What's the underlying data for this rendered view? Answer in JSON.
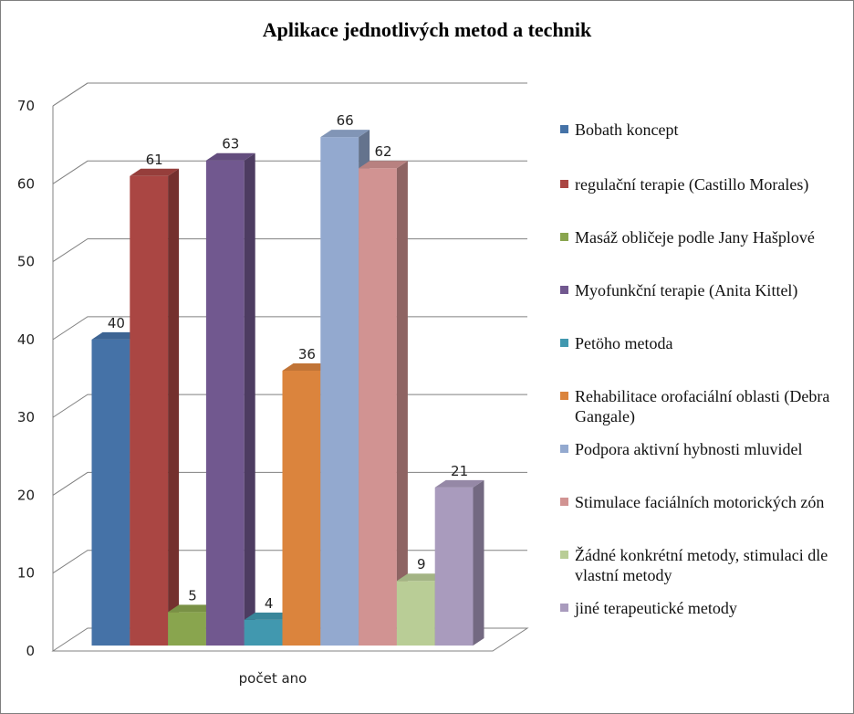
{
  "chart_data": {
    "type": "bar",
    "title": "Aplikace jednotlivých metod a technik",
    "categories": [
      "počet ano"
    ],
    "ylim": [
      0,
      70
    ],
    "yticks": [
      "0",
      "10",
      "20",
      "30",
      "40",
      "50",
      "60",
      "70"
    ],
    "grid": true,
    "legend_position": "right",
    "series": [
      {
        "name": "Bobath koncept",
        "values": [
          40
        ],
        "color": "#4572a7"
      },
      {
        "name": "regulační terapie (Castillo Morales)",
        "values": [
          61
        ],
        "color": "#aa4643"
      },
      {
        "name": "Masáž obličeje podle Jany Hašplové",
        "values": [
          5
        ],
        "color": "#89a54e"
      },
      {
        "name": "Myofunkční terapie (Anita Kittel)",
        "values": [
          63
        ],
        "color": "#71588f"
      },
      {
        "name": "Petöho metoda",
        "values": [
          4
        ],
        "color": "#4198af"
      },
      {
        "name": "Rehabilitace orofaciální oblasti (Debra Gangale)",
        "values": [
          36
        ],
        "color": "#db843d"
      },
      {
        "name": "Podpora aktivní hybnosti mluvidel",
        "values": [
          66
        ],
        "color": "#93a9cf"
      },
      {
        "name": "Stimulace faciálních motorických zón",
        "values": [
          62
        ],
        "color": "#d19392"
      },
      {
        "name": "Žádné konkrétní metody, stimulaci dle vlastní metody",
        "values": [
          9
        ],
        "color": "#b9cd96"
      },
      {
        "name": "jiné terapeutické metody",
        "values": [
          21
        ],
        "color": "#a99bbd"
      }
    ]
  }
}
